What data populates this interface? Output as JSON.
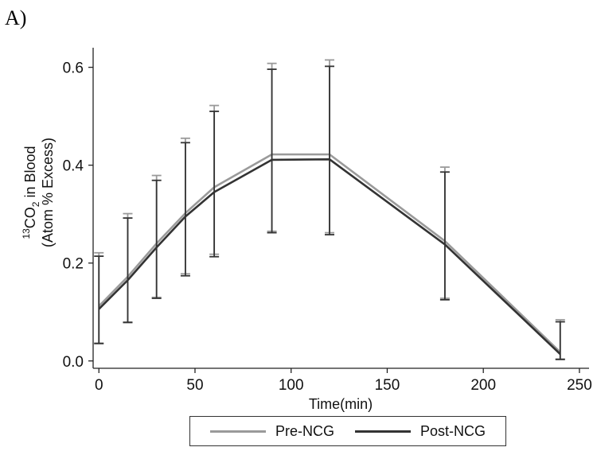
{
  "panel_label": "A)",
  "chart_data": {
    "type": "line",
    "title": "",
    "xlabel": "Time(min)",
    "ylabel_line1_prefix": "13",
    "ylabel_line1_co": "CO",
    "ylabel_line1_sub": "2",
    "ylabel_line1_rest": " in Blood",
    "ylabel_line2": "(Atom % Excess)",
    "xlim": [
      -3,
      255
    ],
    "ylim": [
      -0.015,
      0.64
    ],
    "xticks": [
      0,
      50,
      100,
      150,
      200,
      250
    ],
    "xtick_labels": [
      "0",
      "50",
      "100",
      "150",
      "200",
      "250"
    ],
    "yticks": [
      0.0,
      0.2,
      0.4,
      0.6
    ],
    "ytick_labels": [
      "0.0",
      "0.2",
      "0.4",
      "0.6"
    ],
    "x": [
      0,
      15,
      30,
      45,
      60,
      90,
      120,
      180,
      240
    ],
    "series": [
      {
        "name": "Pre-NCG",
        "color": "#9a9a9a",
        "values": [
          0.112,
          0.172,
          0.24,
          0.302,
          0.355,
          0.422,
          0.422,
          0.245,
          0.018
        ],
        "err_high": [
          0.221,
          0.301,
          0.379,
          0.455,
          0.522,
          0.608,
          0.615,
          0.396,
          0.084
        ],
        "err_low": [
          0.035,
          0.078,
          0.13,
          0.178,
          0.218,
          0.265,
          0.262,
          0.128,
          0.004
        ]
      },
      {
        "name": "Post-NCG",
        "color": "#333333",
        "values": [
          0.106,
          0.165,
          0.232,
          0.295,
          0.345,
          0.411,
          0.412,
          0.238,
          0.014
        ],
        "err_high": [
          0.214,
          0.292,
          0.369,
          0.446,
          0.51,
          0.596,
          0.602,
          0.386,
          0.08
        ],
        "err_low": [
          0.036,
          0.079,
          0.128,
          0.174,
          0.213,
          0.262,
          0.258,
          0.125,
          0.003
        ]
      }
    ],
    "legend_position": "bottom-center"
  }
}
